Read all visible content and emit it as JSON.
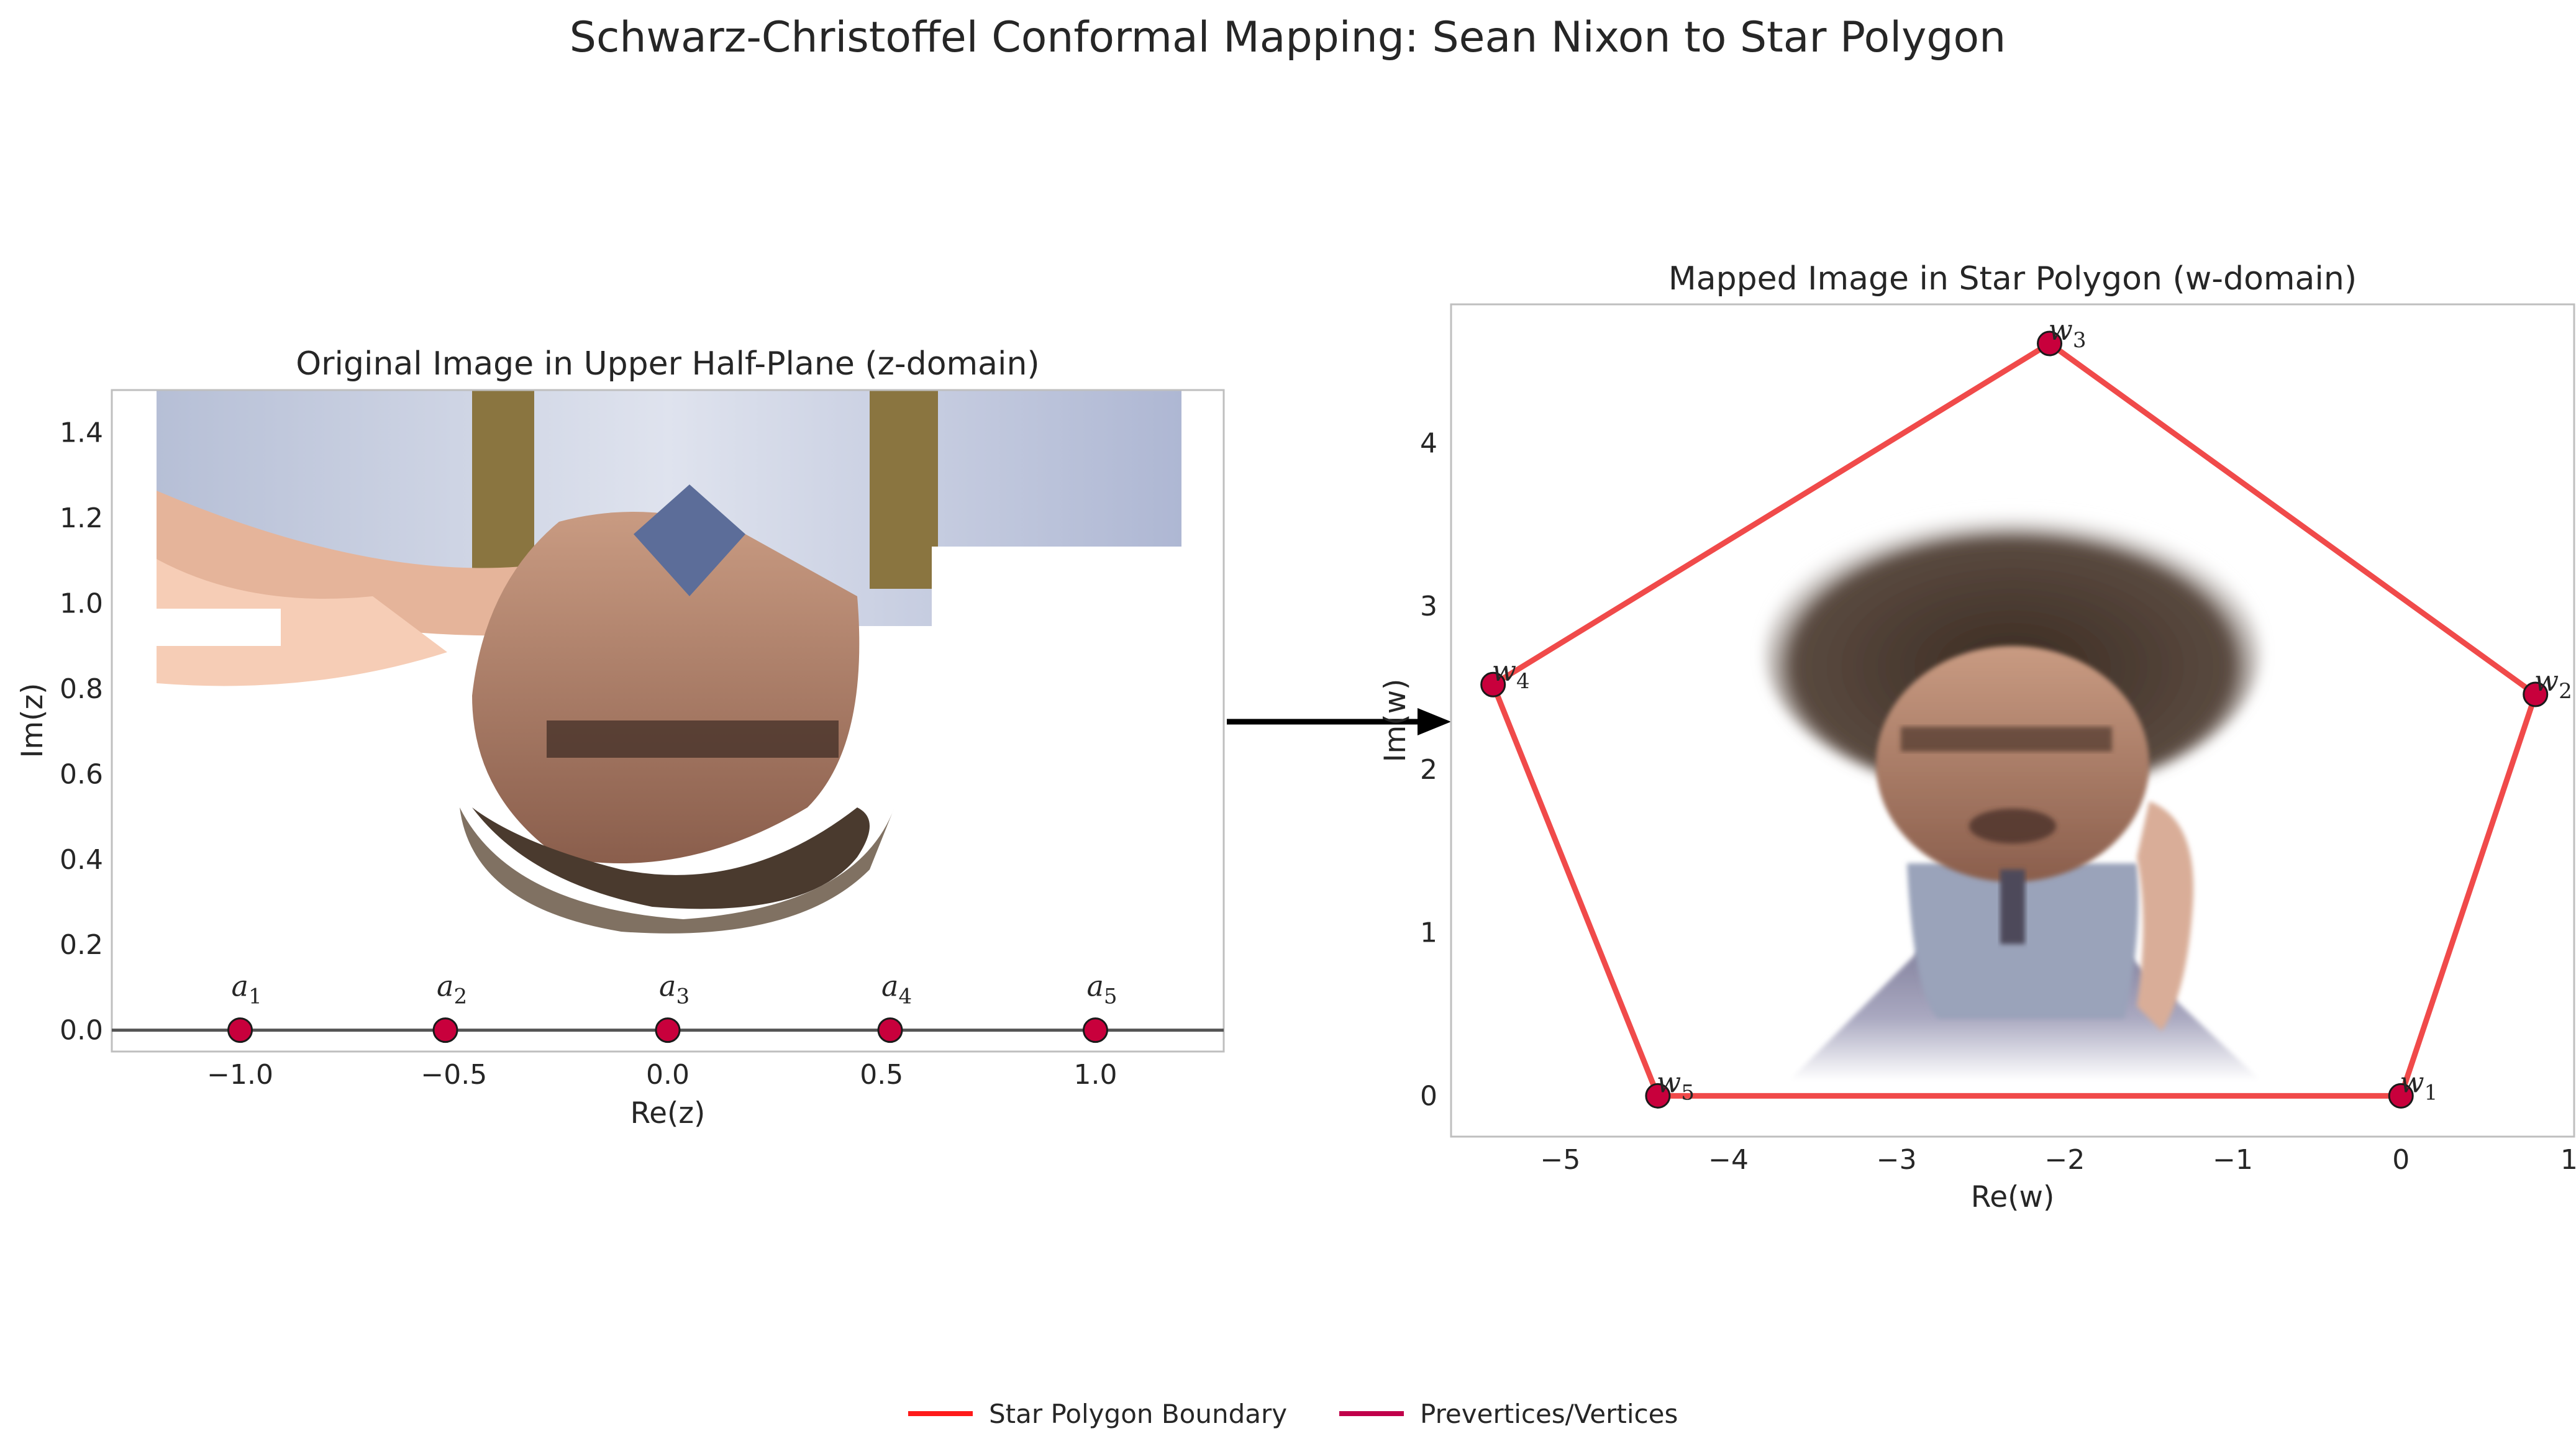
{
  "figure": {
    "title": "Schwarz-Christoffel Conformal Mapping: Sean Nixon to Star Polygon"
  },
  "chart_data": [
    {
      "type": "scatter",
      "title": "Original Image in Upper Half-Plane (z-domain)",
      "xlabel": "Re(z)",
      "ylabel": "Im(z)",
      "xlim": [
        -1.3,
        1.3
      ],
      "ylim": [
        -0.05,
        1.5
      ],
      "xticks": [
        -1.0,
        -0.5,
        0.0,
        0.5,
        1.0
      ],
      "xtick_labels": [
        "−1.0",
        "−0.5",
        "0.0",
        "0.5",
        "1.0"
      ],
      "yticks": [
        0.0,
        0.2,
        0.4,
        0.6,
        0.8,
        1.0,
        1.2,
        1.4
      ],
      "ytick_labels": [
        "0.0",
        "0.2",
        "0.4",
        "0.6",
        "0.8",
        "1.0",
        "1.2",
        "1.4"
      ],
      "grid": false,
      "real_axis_line": true,
      "background_image": "photo-upside-down-pixelated",
      "points": [
        {
          "label": "a1",
          "x": -1.0,
          "y": 0.0
        },
        {
          "label": "a2",
          "x": -0.52,
          "y": 0.0
        },
        {
          "label": "a3",
          "x": 0.0,
          "y": 0.0
        },
        {
          "label": "a4",
          "x": 0.52,
          "y": 0.0
        },
        {
          "label": "a5",
          "x": 1.0,
          "y": 0.0
        }
      ]
    },
    {
      "type": "line",
      "title": "Mapped Image in Star Polygon (w-domain)",
      "xlabel": "Re(w)",
      "ylabel": "Im(w)",
      "xlim": [
        -5.65,
        1.03
      ],
      "ylim": [
        -0.25,
        4.85
      ],
      "xticks": [
        -5,
        -4,
        -3,
        -2,
        -1,
        0,
        1
      ],
      "xtick_labels": [
        "−5",
        "−4",
        "−3",
        "−2",
        "−1",
        "0",
        "1"
      ],
      "yticks": [
        0,
        1,
        2,
        3,
        4
      ],
      "ytick_labels": [
        "0",
        "1",
        "2",
        "3",
        "4"
      ],
      "grid": false,
      "background_image": "photo-warped-upright",
      "polygon_color": "#f04a4a",
      "vertices": [
        {
          "label": "w1",
          "x": 0.0,
          "y": 0.0
        },
        {
          "label": "w2",
          "x": 0.8,
          "y": 2.46
        },
        {
          "label": "w3",
          "x": -2.09,
          "y": 4.61
        },
        {
          "label": "w4",
          "x": -5.4,
          "y": 2.52
        },
        {
          "label": "w5",
          "x": -4.42,
          "y": 0.0
        }
      ]
    }
  ],
  "legend": {
    "placement": "bottom-center",
    "entries": [
      {
        "label": "Star Polygon Boundary",
        "color": "#ff1a1a"
      },
      {
        "label": "Prevertices/Vertices",
        "color": "#c0004a"
      }
    ]
  },
  "colors": {
    "point_fill": "#c8003c",
    "point_edge": "#1a1a1a",
    "axis_frame": "#bfbfbf",
    "arrow": "#000000"
  }
}
